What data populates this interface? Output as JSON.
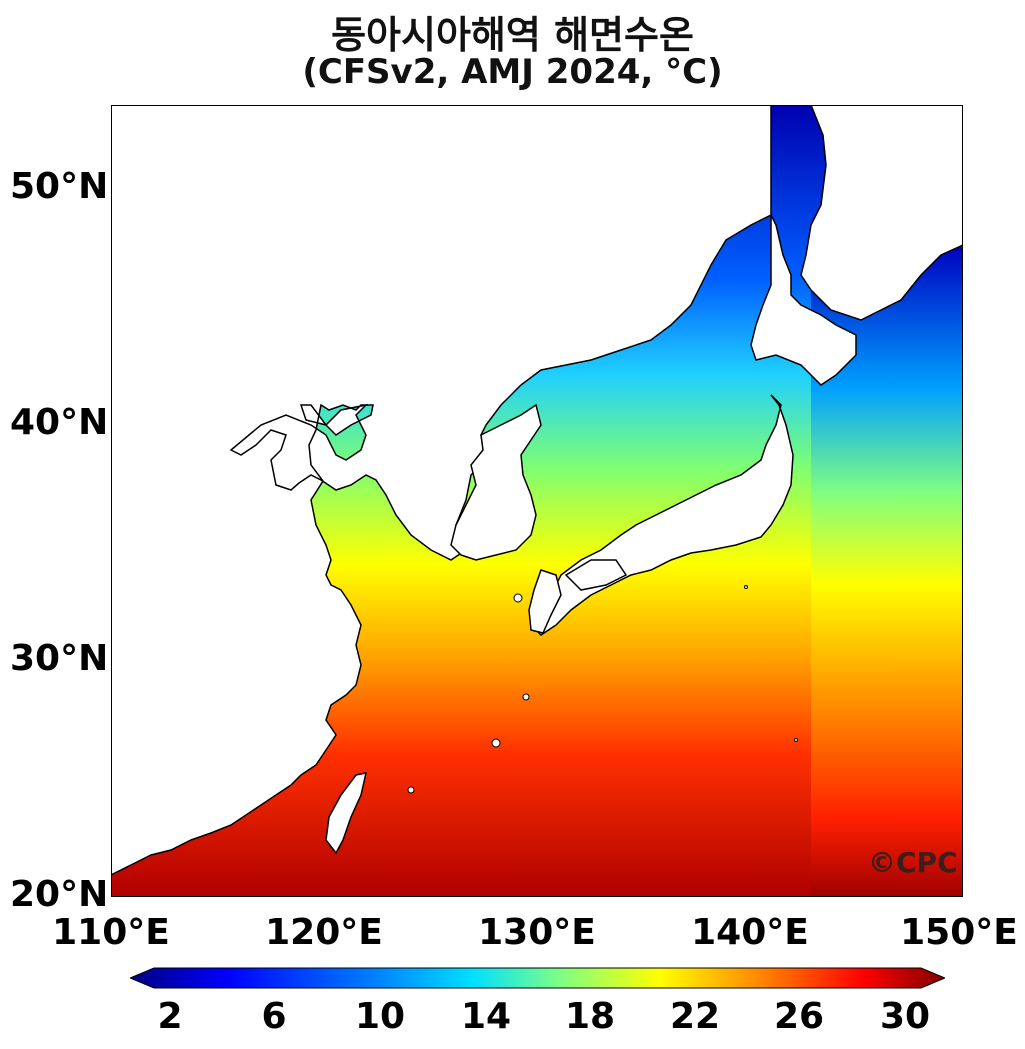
{
  "title": {
    "line1": "동아시아해역 해면수온",
    "line2": "(CFSv2, AMJ 2024, °C)"
  },
  "axes": {
    "lat_labels": [
      "50°N",
      "40°N",
      "30°N",
      "20°N"
    ],
    "lon_labels": [
      "110°E",
      "120°E",
      "130°E",
      "140°E",
      "150°E"
    ],
    "lon_range": [
      110,
      150
    ],
    "lat_range": [
      20,
      53.5
    ]
  },
  "colorbar": {
    "min": 0,
    "max": 32,
    "tick_labels": [
      "2",
      "6",
      "10",
      "14",
      "18",
      "22",
      "26",
      "30"
    ],
    "colors": [
      "#000080",
      "#0000ff",
      "#0080ff",
      "#00e0ff",
      "#80ff80",
      "#ffff00",
      "#ff8000",
      "#ff0000",
      "#800000"
    ],
    "extend": "both"
  },
  "credit": "©CPC",
  "legend": {
    "position": "bottom"
  }
}
